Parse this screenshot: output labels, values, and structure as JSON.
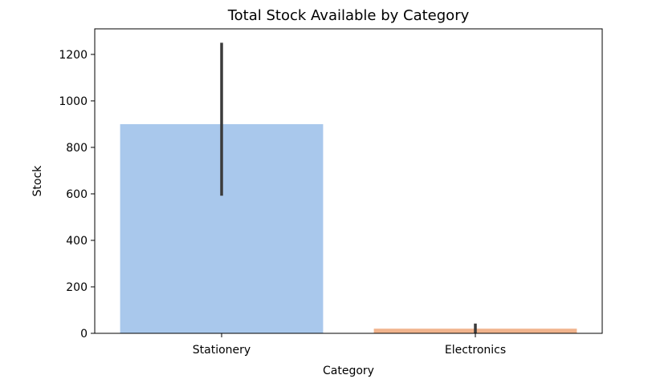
{
  "chart_data": {
    "type": "bar",
    "title": "Total Stock Available by Category",
    "xlabel": "Category",
    "ylabel": "Stock",
    "categories": [
      "Stationery",
      "Electronics"
    ],
    "values": [
      900,
      20
    ],
    "error_low": [
      592,
      0
    ],
    "error_high": [
      1250,
      42
    ],
    "colors": [
      "#a9c8ec",
      "#f1b48d"
    ],
    "ylim": [
      0,
      1310
    ],
    "yticks": [
      0,
      200,
      400,
      600,
      800,
      1000,
      1200
    ],
    "grid": false,
    "legend": "none"
  }
}
